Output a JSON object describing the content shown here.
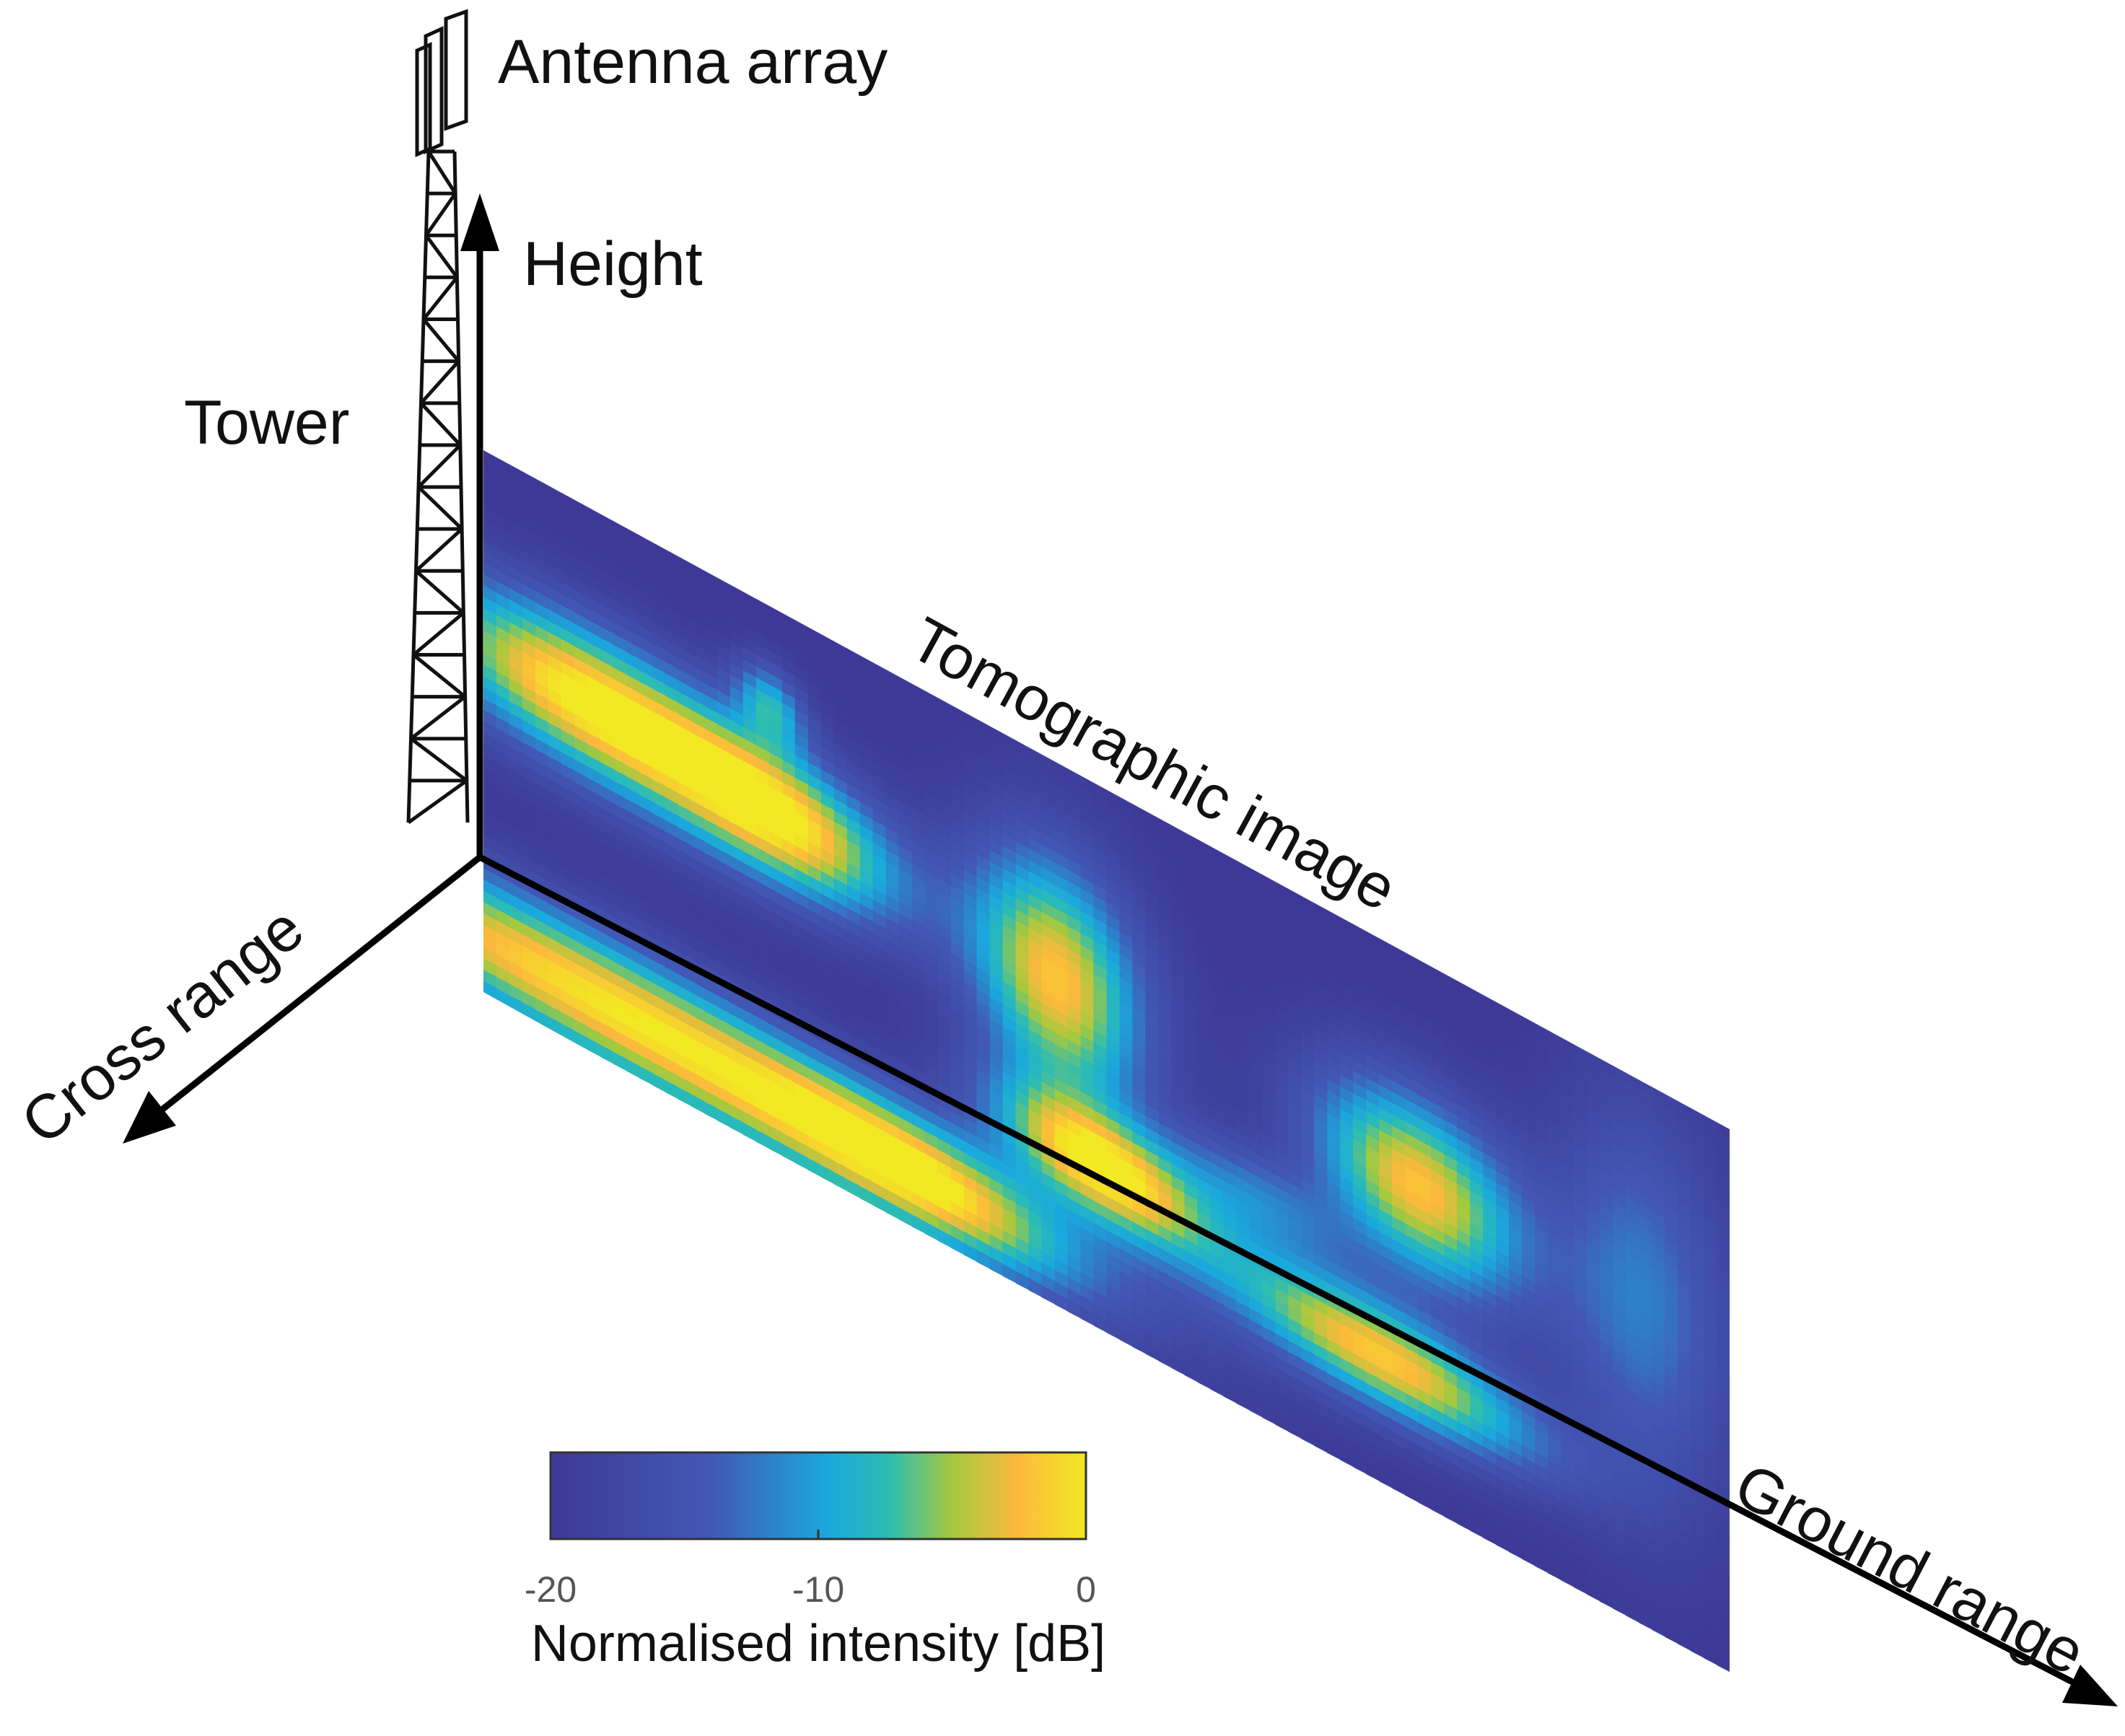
{
  "labels": {
    "antenna_array": "Antenna array",
    "height": "Height",
    "tower": "Tower",
    "tomographic_image": "Tomographic image",
    "cross_range": "Cross range",
    "ground_range": "Ground range"
  },
  "colorbar": {
    "title": "Normalised intensity [dB]",
    "ticks": [
      "-20",
      "-10",
      "0"
    ],
    "min": -20,
    "max": 0,
    "colormap": [
      "#3e3996",
      "#4258b5",
      "#1aa9dd",
      "#2cbcb3",
      "#a4c93f",
      "#fcb93d",
      "#f2e823"
    ]
  },
  "image": {
    "description_units": "dB",
    "background_level": -20,
    "blobs": [
      {
        "u": 0.08,
        "v": 0.36,
        "su": 0.09,
        "sv": 0.1,
        "a": 20
      },
      {
        "u": 0.24,
        "v": 0.38,
        "su": 0.07,
        "sv": 0.09,
        "a": 18
      },
      {
        "u": 0.23,
        "v": 0.18,
        "su": 0.02,
        "sv": 0.05,
        "a": 10
      },
      {
        "u": 0.46,
        "v": 0.4,
        "su": 0.05,
        "sv": 0.16,
        "a": 18
      },
      {
        "u": 0.5,
        "v": 0.7,
        "su": 0.06,
        "sv": 0.07,
        "a": 19
      },
      {
        "u": 0.75,
        "v": 0.42,
        "su": 0.06,
        "sv": 0.12,
        "a": 18
      },
      {
        "u": 0.72,
        "v": 0.77,
        "su": 0.09,
        "sv": 0.07,
        "a": 18
      },
      {
        "u": 0.12,
        "v": 0.9,
        "su": 0.22,
        "sv": 0.09,
        "a": 20
      },
      {
        "u": 0.35,
        "v": 0.9,
        "su": 0.08,
        "sv": 0.07,
        "a": 11
      },
      {
        "u": 0.93,
        "v": 0.4,
        "su": 0.05,
        "sv": 0.25,
        "a": 8
      },
      {
        "u": 0.62,
        "v": 0.6,
        "su": 0.05,
        "sv": 0.06,
        "a": 7
      }
    ]
  }
}
